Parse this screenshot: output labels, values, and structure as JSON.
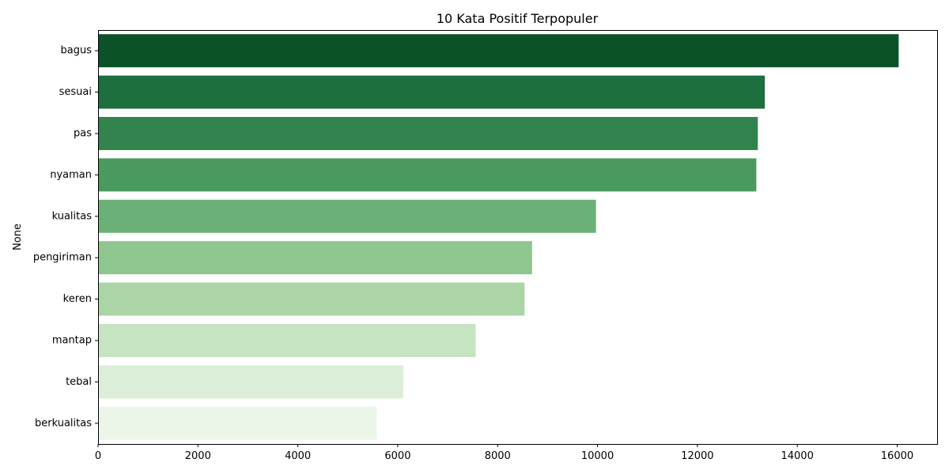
{
  "chart_data": {
    "type": "bar",
    "orientation": "horizontal",
    "title": "10 Kata Positif Terpopuler",
    "xlabel": "",
    "ylabel": "None",
    "categories": [
      "bagus",
      "sesuai",
      "pas",
      "nyaman",
      "kualitas",
      "pengiriman",
      "keren",
      "mantap",
      "tebal",
      "berkualitas"
    ],
    "values": [
      16030,
      13350,
      13210,
      13180,
      9970,
      8690,
      8540,
      7560,
      6110,
      5580
    ],
    "colors": [
      "#0b5229",
      "#1d6f3d",
      "#32834e",
      "#4a9a5f",
      "#6bb077",
      "#8fc58e",
      "#abd5a6",
      "#c6e3c2",
      "#dbeed7",
      "#ebf6e8"
    ],
    "xlim": [
      0,
      16800
    ],
    "xticks": [
      0,
      2000,
      4000,
      6000,
      8000,
      10000,
      12000,
      14000,
      16000
    ],
    "grid": false,
    "legend": "none"
  }
}
